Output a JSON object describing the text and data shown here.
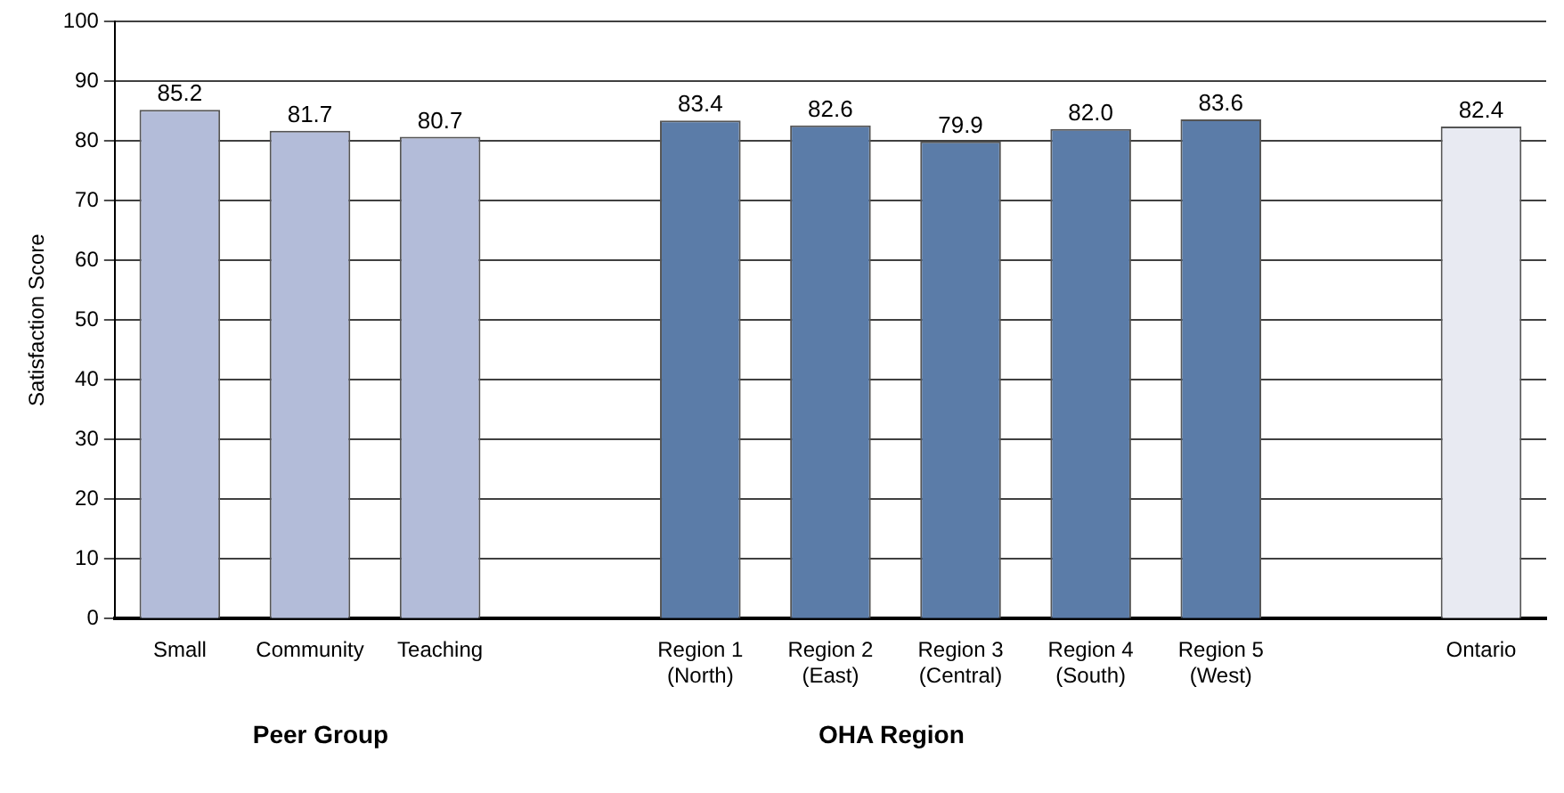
{
  "chart_data": {
    "type": "bar",
    "ylabel": "Satisfaction Score",
    "categories": [
      "Small",
      "Community",
      "Teaching",
      null,
      "Region 1\n(North)",
      "Region 2\n(East)",
      "Region 3\n(Central)",
      "Region 4\n(South)",
      "Region 5\n(West)",
      null,
      "Ontario"
    ],
    "values": [
      85.2,
      81.7,
      80.7,
      null,
      83.4,
      82.6,
      79.9,
      82.0,
      83.6,
      null,
      82.4
    ],
    "value_labels": [
      "85.2",
      "81.7",
      "80.7",
      null,
      "83.4",
      "82.6",
      "79.9",
      "82.0",
      "83.6",
      null,
      "82.4"
    ],
    "colors": [
      "#b3bcd9",
      "#b3bcd9",
      "#b3bcd9",
      "#ffffff",
      "#5b7ca8",
      "#5b7ca8",
      "#5b7ca8",
      "#5b7ca8",
      "#5b7ca8",
      "#ffffff",
      "#e8eaf2"
    ],
    "ylim": [
      0,
      100
    ],
    "yticks": [
      0,
      10,
      20,
      30,
      40,
      50,
      60,
      70,
      80,
      90,
      100
    ],
    "grid": "y",
    "legend": false,
    "annotations": [
      "Peer Group",
      "OHA Region"
    ]
  }
}
